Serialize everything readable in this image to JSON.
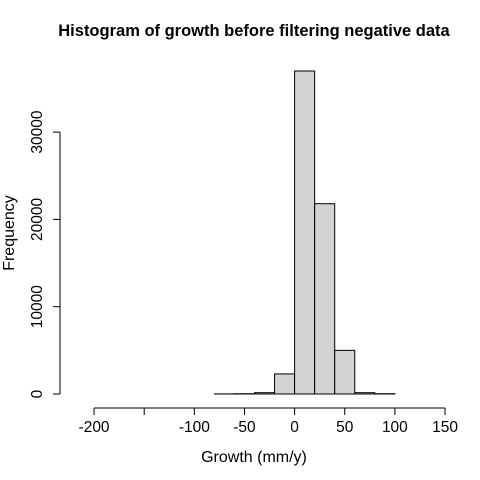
{
  "chart_data": {
    "type": "bar",
    "title": "Histogram of growth before filtering negative data",
    "xlabel": "Growth (mm/y)",
    "ylabel": "Frequency",
    "xlim": [
      -220,
      140
    ],
    "ylim": [
      0,
      37000
    ],
    "x_ticks": [
      -200,
      -150,
      -100,
      -50,
      0,
      50,
      100,
      150
    ],
    "x_tick_labels": [
      "-200",
      "",
      "-100",
      "-50",
      "0",
      "50",
      "100",
      "150"
    ],
    "y_ticks": [
      0,
      10000,
      20000,
      30000
    ],
    "y_tick_labels": [
      "0",
      "10000",
      "20000",
      "30000"
    ],
    "grid": false,
    "bins": [
      {
        "x0": -220,
        "x1": -200,
        "count": 0
      },
      {
        "x0": -200,
        "x1": -180,
        "count": 0
      },
      {
        "x0": -180,
        "x1": -160,
        "count": 0
      },
      {
        "x0": -160,
        "x1": -140,
        "count": 0
      },
      {
        "x0": -140,
        "x1": -120,
        "count": 0
      },
      {
        "x0": -120,
        "x1": -100,
        "count": 0
      },
      {
        "x0": -100,
        "x1": -80,
        "count": 0
      },
      {
        "x0": -80,
        "x1": -60,
        "count": 10
      },
      {
        "x0": -60,
        "x1": -40,
        "count": 30
      },
      {
        "x0": -40,
        "x1": -20,
        "count": 150
      },
      {
        "x0": -20,
        "x1": 0,
        "count": 2300
      },
      {
        "x0": 0,
        "x1": 20,
        "count": 37000
      },
      {
        "x0": 20,
        "x1": 40,
        "count": 21800
      },
      {
        "x0": 40,
        "x1": 60,
        "count": 5000
      },
      {
        "x0": 60,
        "x1": 80,
        "count": 150
      },
      {
        "x0": 80,
        "x1": 100,
        "count": 30
      },
      {
        "x0": 100,
        "x1": 120,
        "count": 0
      },
      {
        "x0": 120,
        "x1": 140,
        "count": 0
      }
    ]
  }
}
